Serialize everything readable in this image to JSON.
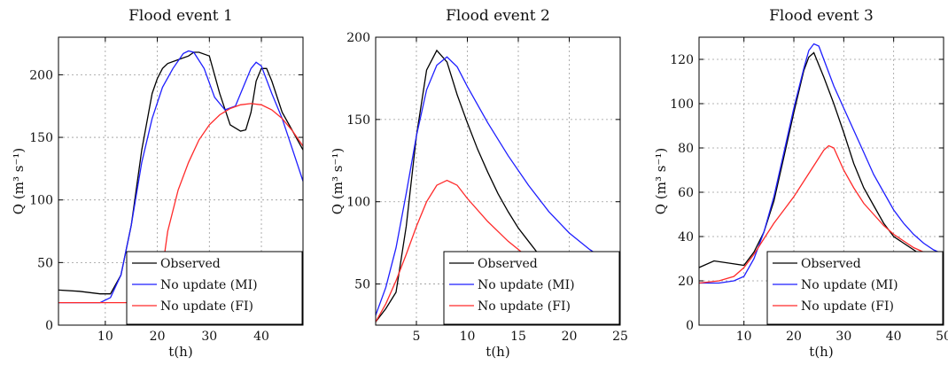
{
  "legend_entries": [
    {
      "name": "Observed",
      "color": "#000000"
    },
    {
      "name": "No update (MI)",
      "color": "#1f1fff"
    },
    {
      "name": "No update (FI)",
      "color": "#ff2a2a"
    }
  ],
  "chart_data": [
    {
      "type": "line",
      "title": "Flood event 1",
      "xlabel": "t(h)",
      "ylabel": "Q (m³ s⁻¹)",
      "xlim": [
        1,
        48
      ],
      "ylim": [
        0,
        230
      ],
      "xticks": [
        10,
        20,
        30,
        40
      ],
      "yticks": [
        0,
        50,
        100,
        150,
        200
      ],
      "grid": true,
      "legend_position": "bottom-right",
      "series": [
        {
          "name": "Observed",
          "color": "#000000",
          "x": [
            1,
            5,
            9,
            11,
            13,
            15,
            17,
            19,
            20,
            21,
            22,
            24,
            26,
            27,
            28,
            30,
            32,
            34,
            36,
            37,
            38,
            39,
            40,
            41,
            42,
            44,
            46,
            48
          ],
          "y": [
            28,
            27,
            25,
            25,
            40,
            80,
            140,
            185,
            197,
            205,
            209,
            212,
            215,
            218,
            218,
            215,
            185,
            160,
            155,
            156,
            170,
            195,
            205,
            205,
            195,
            170,
            155,
            140
          ]
        },
        {
          "name": "No update (MI)",
          "color": "#1f1fff",
          "x": [
            1,
            5,
            9,
            11,
            13,
            15,
            17,
            19,
            21,
            23,
            25,
            26,
            27,
            29,
            31,
            33,
            35,
            37,
            38,
            39,
            40,
            42,
            44,
            46,
            48
          ],
          "y": [
            18,
            18,
            18,
            22,
            40,
            80,
            130,
            165,
            190,
            205,
            217,
            219,
            218,
            205,
            182,
            172,
            175,
            195,
            205,
            210,
            207,
            185,
            165,
            140,
            115
          ]
        },
        {
          "name": "No update (FI)",
          "color": "#ff2a2a",
          "x": [
            1,
            5,
            10,
            15,
            18,
            19,
            20,
            21,
            22,
            24,
            26,
            28,
            30,
            32,
            34,
            36,
            38,
            40,
            42,
            44,
            46,
            48
          ],
          "y": [
            18,
            18,
            18,
            18,
            18,
            18,
            25,
            45,
            75,
            108,
            130,
            148,
            160,
            168,
            173,
            176,
            177,
            176,
            172,
            165,
            155,
            143
          ]
        }
      ]
    },
    {
      "type": "line",
      "title": "Flood event 2",
      "xlabel": "t(h)",
      "ylabel": "Q (m³ s⁻¹)",
      "xlim": [
        1,
        25
      ],
      "ylim": [
        25,
        200
      ],
      "xticks": [
        5,
        10,
        15,
        20,
        25
      ],
      "yticks": [
        50,
        100,
        150,
        200
      ],
      "grid": true,
      "legend_position": "bottom-right",
      "series": [
        {
          "name": "Observed",
          "color": "#000000",
          "x": [
            1,
            2,
            3,
            4,
            5,
            6,
            7,
            8,
            9,
            10,
            11,
            12,
            13,
            14,
            15,
            16,
            17,
            18,
            20,
            22,
            24,
            25
          ],
          "y": [
            27,
            35,
            45,
            85,
            140,
            180,
            192,
            185,
            165,
            148,
            132,
            118,
            105,
            94,
            84,
            76,
            68,
            64,
            58,
            54,
            51,
            50
          ]
        },
        {
          "name": "No update (MI)",
          "color": "#1f1fff",
          "x": [
            1,
            2,
            3,
            4,
            5,
            6,
            7,
            8,
            9,
            10,
            12,
            14,
            16,
            18,
            20,
            22,
            24,
            25
          ],
          "y": [
            31,
            48,
            72,
            105,
            140,
            168,
            183,
            188,
            182,
            170,
            148,
            128,
            110,
            94,
            81,
            71,
            63,
            60
          ]
        },
        {
          "name": "No update (FI)",
          "color": "#ff2a2a",
          "x": [
            1,
            2,
            3,
            4,
            5,
            6,
            7,
            8,
            9,
            10,
            12,
            14,
            16,
            18,
            20,
            22,
            24,
            25
          ],
          "y": [
            27,
            38,
            52,
            68,
            85,
            100,
            110,
            113,
            110,
            102,
            88,
            76,
            66,
            58,
            51,
            46,
            42,
            41
          ]
        }
      ]
    },
    {
      "type": "line",
      "title": "Flood event 3",
      "xlabel": "t(h)",
      "ylabel": "Q (m³ s⁻¹)",
      "xlim": [
        1,
        50
      ],
      "ylim": [
        0,
        130
      ],
      "xticks": [
        10,
        20,
        30,
        40,
        50
      ],
      "yticks": [
        0,
        20,
        40,
        60,
        80,
        100,
        120
      ],
      "grid": true,
      "legend_position": "bottom-right",
      "series": [
        {
          "name": "Observed",
          "color": "#000000",
          "x": [
            1,
            4,
            7,
            10,
            12,
            14,
            16,
            18,
            20,
            22,
            23,
            24,
            26,
            28,
            30,
            32,
            34,
            36,
            38,
            40,
            42,
            44,
            46,
            48,
            50
          ],
          "y": [
            26,
            29,
            28,
            27,
            33,
            42,
            56,
            76,
            96,
            115,
            121,
            123,
            112,
            100,
            87,
            73,
            62,
            54,
            46,
            40,
            37,
            34,
            31,
            28,
            26
          ]
        },
        {
          "name": "No update (MI)",
          "color": "#1f1fff",
          "x": [
            1,
            5,
            8,
            10,
            12,
            14,
            16,
            18,
            20,
            22,
            23,
            24,
            25,
            26,
            28,
            30,
            32,
            34,
            36,
            38,
            40,
            42,
            44,
            46,
            48,
            50
          ],
          "y": [
            19,
            19,
            20,
            22,
            30,
            42,
            58,
            78,
            98,
            116,
            124,
            127,
            126,
            120,
            108,
            98,
            88,
            78,
            68,
            60,
            52,
            46,
            41,
            37,
            34,
            32
          ]
        },
        {
          "name": "No update (FI)",
          "color": "#ff2a2a",
          "x": [
            1,
            5,
            8,
            10,
            12,
            14,
            16,
            18,
            20,
            22,
            24,
            26,
            27,
            28,
            30,
            32,
            34,
            36,
            38,
            40,
            42,
            44,
            46,
            48,
            50
          ],
          "y": [
            19,
            20,
            22,
            26,
            32,
            39,
            46,
            52,
            58,
            65,
            72,
            79,
            81,
            80,
            70,
            62,
            55,
            50,
            45,
            41,
            38,
            35,
            33,
            31,
            29
          ]
        }
      ]
    }
  ]
}
